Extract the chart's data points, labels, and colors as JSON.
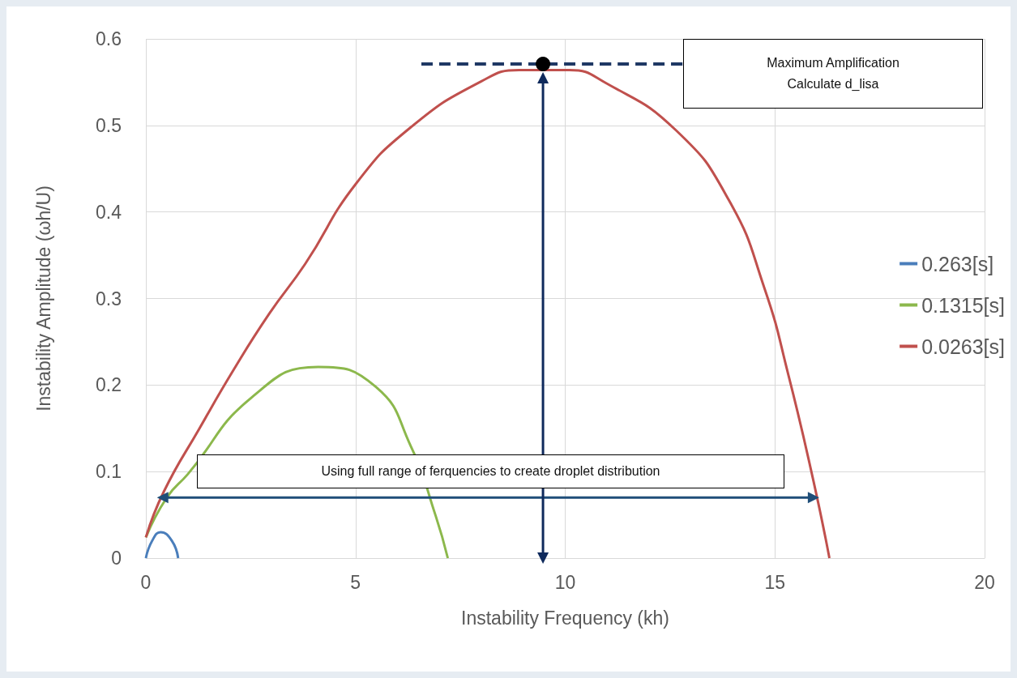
{
  "chart_data": {
    "type": "line",
    "xlabel": "Instability Frequency (kh)",
    "ylabel": "Instability Amplitude (ωh/U)",
    "annotations": [
      "Maximum Amplification\nCalculate d_lisa",
      "Using full range of ferquencies to create droplet distribution"
    ],
    "xlim": [
      0,
      20
    ],
    "xticks": [
      0,
      5,
      10,
      15,
      20
    ],
    "ylim": [
      0,
      0.6
    ],
    "yticks": [
      0,
      0.1,
      0.2,
      0.3,
      0.4,
      0.5,
      0.6
    ],
    "grid": true,
    "legend": "right",
    "marker": "none",
    "line_style": "solid",
    "series": [
      {
        "name": "0.263[s]",
        "color": "#4a7ebb",
        "x": [
          0,
          0.15,
          0.35,
          0.62,
          0.77
        ],
        "values": [
          0,
          0.02,
          0.03,
          0.02,
          0
        ]
      },
      {
        "name": "0.1315[s]",
        "color": "#8cb84c",
        "x": [
          0,
          0.5,
          1,
          2.53,
          4.11,
          5.48,
          6.32,
          6.91,
          7.2
        ],
        "values": [
          0.024,
          0.07,
          0.097,
          0.186,
          0.221,
          0.198,
          0.129,
          0.049,
          0
        ]
      },
      {
        "name": "0.0263[s]",
        "color": "#c0504d",
        "x": [
          0,
          0.43,
          1.28,
          2.11,
          2.95,
          3.8,
          5,
          6.32,
          8,
          8.9,
          10.1,
          10.97,
          12.65,
          13.91,
          14.75,
          15.33,
          15.92,
          16.3
        ],
        "values": [
          0.024,
          0.077,
          0.15,
          0.219,
          0.283,
          0.34,
          0.432,
          0.498,
          0.551,
          0.564,
          0.564,
          0.549,
          0.494,
          0.413,
          0.312,
          0.21,
          0.089,
          0
        ]
      },
      {
        "type": "line",
        "color": "#1f3864",
        "line_style": "dashed",
        "x": [
          6.57,
          12.8
        ],
        "values": [
          0.571,
          0.571
        ]
      },
      {
        "type": "line",
        "color": "#1f4e79",
        "marker": "triangle",
        "x": [
          0.4,
          15.92
        ],
        "values": [
          0.07,
          0.07
        ]
      },
      {
        "type": "line",
        "color": "#0f2a5c",
        "marker": "triangle",
        "x": [
          9.47,
          9.47
        ],
        "values": [
          0,
          0.555
        ]
      },
      {
        "type": "scatter",
        "color": "#000000",
        "marker": "circle",
        "x": [
          9.47
        ],
        "values": [
          0.571
        ]
      }
    ]
  }
}
